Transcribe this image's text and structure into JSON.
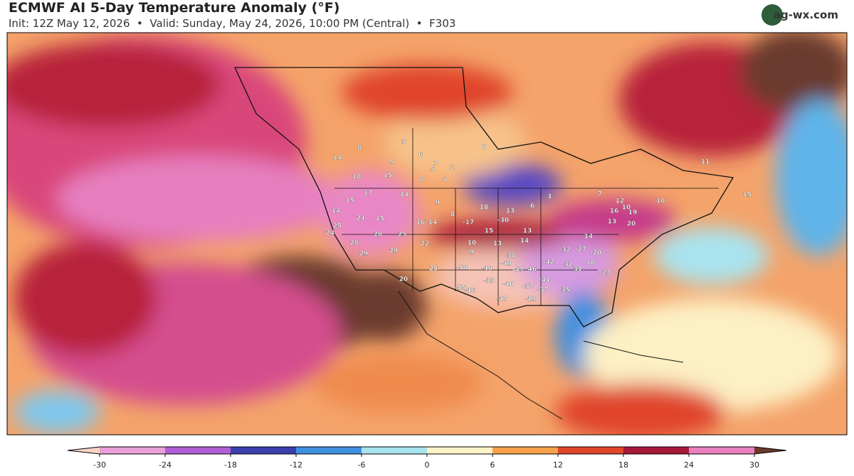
{
  "header": {
    "title": "ECMWF AI 5-Day Temperature Anomaly (°F)",
    "subtitle": "Init: 12Z May 12, 2026  •  Valid: Sunday, May 24, 2026, 10:00 PM (Central)  •  F303",
    "logo": "ag-wx.com"
  },
  "map": {
    "station_values": [
      14,
      8,
      9,
      3,
      6,
      7,
      5,
      2,
      4,
      8,
      18,
      15,
      0,
      14,
      17,
      15,
      14,
      21,
      15,
      25,
      24,
      28,
      25,
      16,
      14,
      8,
      18,
      13,
      6,
      9,
      28,
      29,
      22,
      29,
      25,
      20,
      -17,
      -30,
      15,
      13,
      10,
      13,
      14,
      9,
      -38,
      -49,
      -42,
      -50,
      -49,
      -47,
      -46,
      -33,
      -55,
      -46,
      -40,
      -41,
      -37,
      -37,
      -35,
      -32,
      -32,
      -27,
      -31,
      -20,
      -18,
      -27,
      -47,
      -49,
      12,
      10,
      10,
      16,
      13,
      19,
      14,
      7,
      3,
      11,
      15,
      20
    ]
  },
  "colorbar": {
    "range": [
      -30,
      30
    ],
    "ticks": [
      -30,
      -24,
      -18,
      -12,
      -6,
      0,
      6,
      12,
      18,
      24,
      30
    ],
    "colors": [
      "#f9d3c4",
      "#eaa0d8",
      "#b05fd6",
      "#3b3fae",
      "#3f8fe0",
      "#a8e4f0",
      "#fdf3c8",
      "#f7a24a",
      "#e0452c",
      "#a8183a",
      "#e87fbf",
      "#6b3a2e"
    ]
  }
}
